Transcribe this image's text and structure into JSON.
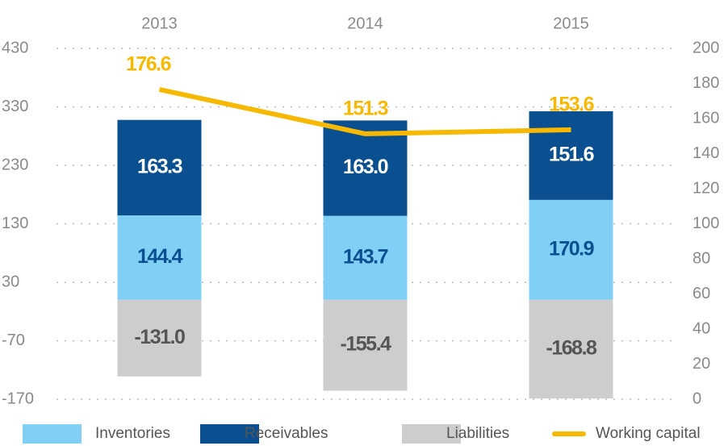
{
  "chart_data": {
    "type": "bar",
    "stacked": true,
    "categories": [
      "2013",
      "2014",
      "2015"
    ],
    "series": [
      {
        "name": "Inventories",
        "color": "#80cff4",
        "values": [
          144.4,
          143.7,
          170.9
        ],
        "value_labels": [
          "144.4",
          "143.7",
          "170.9"
        ],
        "label_color": "#0a4f8f"
      },
      {
        "name": "Receivables",
        "color": "#0a4f8f",
        "values": [
          163.3,
          163,
          151.6
        ],
        "value_labels": [
          "163.3",
          "163.0",
          "151.6"
        ],
        "label_color": "#ffffff"
      },
      {
        "name": "Liabilities",
        "color": "#cdcdcd",
        "values": [
          -131,
          -155.4,
          -168.8
        ],
        "value_labels": [
          "-131.0",
          "-155.4",
          "-168.8"
        ],
        "label_color": "#555555"
      },
      {
        "name": "Working capital",
        "type": "line",
        "axis": "y2",
        "color": "#f7b900",
        "values": [
          176.6,
          151.3,
          153.6
        ],
        "value_labels": [
          "176.6",
          "151.3",
          "153.6"
        ],
        "label_color": "#f7b900"
      }
    ],
    "ylim": [
      -170,
      430
    ],
    "yticks": [
      -170,
      -70,
      30,
      130,
      230,
      330,
      430
    ],
    "y2lim": [
      0,
      200
    ],
    "y2ticks": [
      0,
      20,
      40,
      60,
      80,
      100,
      120,
      140,
      160,
      180,
      200
    ],
    "grid": true,
    "legend": "bottom"
  }
}
